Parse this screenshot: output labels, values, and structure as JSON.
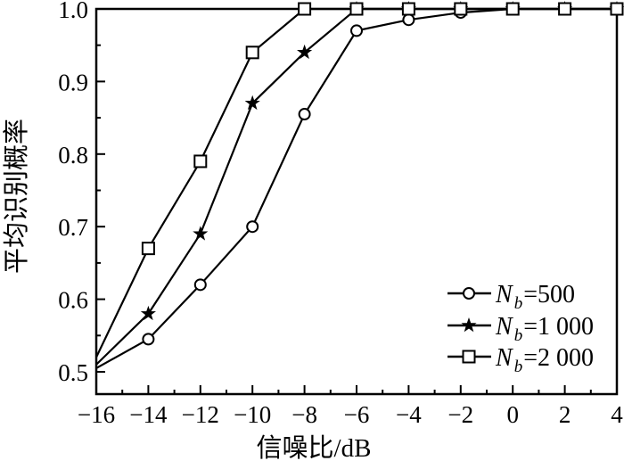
{
  "chart_data": {
    "type": "line",
    "title": "",
    "xlabel": "信噪比/dB",
    "ylabel": "平均识别概率",
    "x": [
      -16,
      -14,
      -12,
      -10,
      -8,
      -6,
      -4,
      -2,
      0,
      2,
      4
    ],
    "xlim": [
      -16,
      4
    ],
    "ylim": [
      0.47,
      1.0
    ],
    "grid": false,
    "legend_position": "lower-right",
    "x_major_ticks": [
      -16,
      -14,
      -12,
      -10,
      -8,
      -6,
      -4,
      -2,
      0,
      2,
      4
    ],
    "x_tick_labels": [
      "−16",
      "−14",
      "−12",
      "−10",
      "−8",
      "−6",
      "−4",
      "−2",
      "0",
      "2",
      "4"
    ],
    "x_minor_ticks": [
      -15,
      -13,
      -11,
      -9,
      -7,
      -5,
      -3,
      -1,
      1,
      3
    ],
    "y_major_ticks": [
      1.0,
      0.9,
      0.8,
      0.7,
      0.6,
      0.5
    ],
    "y_tick_labels": [
      "1.0",
      "0.9",
      "0.8",
      "0.7",
      "0.6",
      "0.5"
    ],
    "y_minor_ticks": [
      0.95,
      0.85,
      0.75,
      0.65,
      0.55
    ],
    "colors": {
      "line": "#000000",
      "background": "#ffffff"
    },
    "series": [
      {
        "name": "Nb=500",
        "marker": "circle",
        "legend": {
          "main": "N",
          "sub": "b",
          "value": "=500"
        },
        "values": [
          0.505,
          0.545,
          0.62,
          0.7,
          0.855,
          0.97,
          0.985,
          0.995,
          1.0,
          1.0,
          1.0
        ]
      },
      {
        "name": "Nb=1 000",
        "marker": "star",
        "legend": {
          "main": "N",
          "sub": "b",
          "value": "=1 000"
        },
        "values": [
          0.51,
          0.58,
          0.69,
          0.87,
          0.94,
          1.0,
          1.0,
          1.0,
          1.0,
          1.0,
          1.0
        ]
      },
      {
        "name": "Nb=2 000",
        "marker": "square",
        "legend": {
          "main": "N",
          "sub": "b",
          "value": "=2 000"
        },
        "values": [
          0.52,
          0.67,
          0.79,
          0.94,
          1.0,
          1.0,
          1.0,
          1.0,
          1.0,
          1.0,
          1.0
        ]
      }
    ]
  }
}
